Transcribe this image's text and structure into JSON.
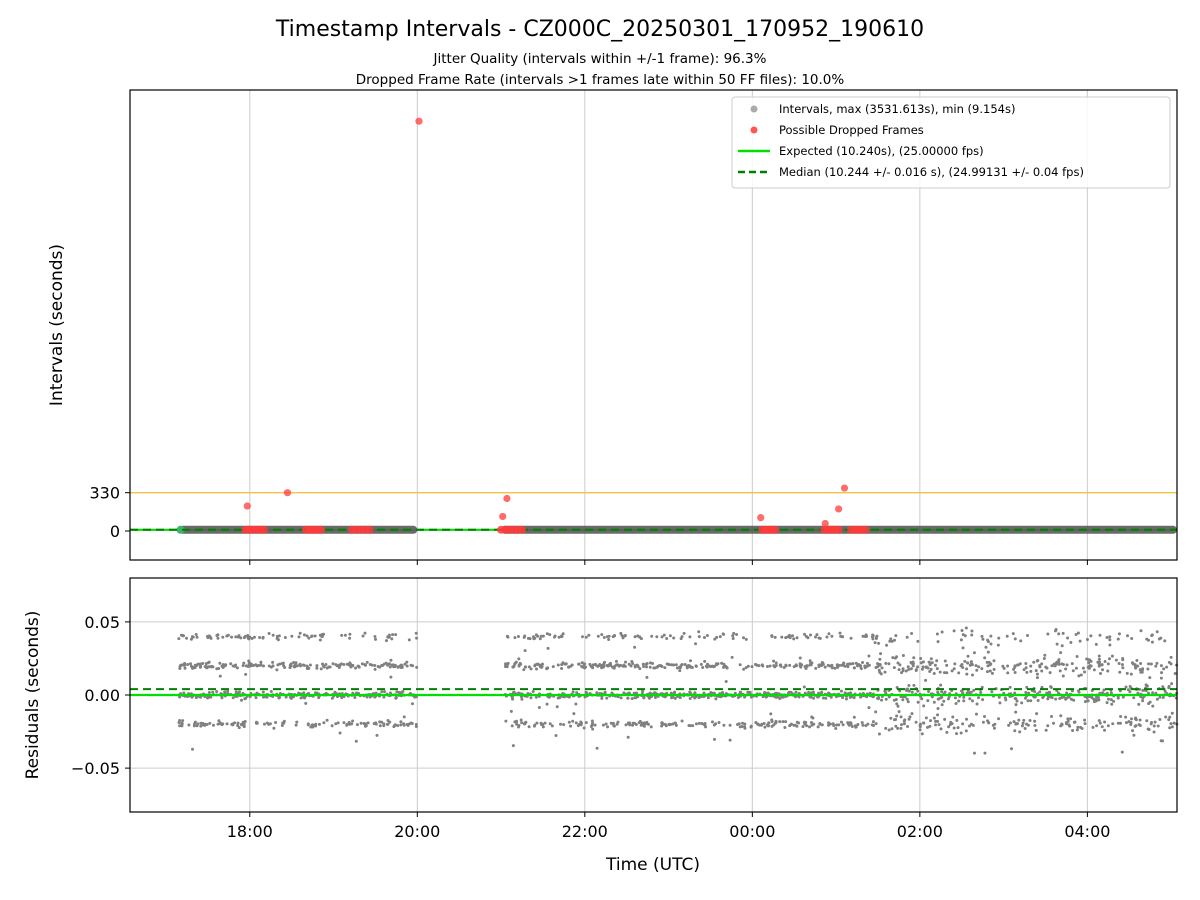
{
  "figure": {
    "title": "Timestamp Intervals - CZ000C_20250301_170952_190610",
    "subtitle_lines": [
      "Jitter Quality (intervals within +/-1 frame): 96.3%",
      "Dropped Frame Rate (intervals >1 frames late within 50 FF files): 10.0%"
    ]
  },
  "colors": {
    "intervals": "#808080",
    "dropped": "#ff3b3b",
    "expected": "#00e000",
    "median": "#008000",
    "threshold": "#f5c242",
    "grid": "#cccccc"
  },
  "chart_data": [
    {
      "type": "scatter",
      "panel": "intervals",
      "xlabel": "",
      "ylabel": "Intervals (seconds)",
      "x_unit": "hours since 00:00 UTC (negative = previous day)",
      "xlim": [
        -7.43,
        5.07
      ],
      "ylim": [
        -250,
        3800
      ],
      "x_ticks": [
        -6,
        -4,
        -2,
        0,
        2,
        4
      ],
      "y_ticks": [
        0,
        330
      ],
      "y_tick_labels": [
        "0",
        "330"
      ],
      "threshold_line": 330,
      "expected_value": 10.24,
      "median_value": 10.244,
      "grid": "vertical",
      "legend_position": "top-right",
      "legend": [
        {
          "label": "Intervals, max (3531.613s), min (9.154s)",
          "kind": "dot",
          "color": "#aaaaaa"
        },
        {
          "label": "Possible Dropped Frames",
          "kind": "dot",
          "color": "#ff5555"
        },
        {
          "label": "Expected (10.240s), (25.00000 fps)",
          "kind": "line",
          "color": "#00e000"
        },
        {
          "label": "Median (10.244 +/- 0.016 s), (24.99131 +/- 0.04 fps)",
          "kind": "dash",
          "color": "#008000"
        }
      ],
      "interval_segments": [
        {
          "start": -6.85,
          "end": -4.0
        },
        {
          "start": -3.0,
          "end": 5.07
        }
      ],
      "dropped_outliers": [
        {
          "x": -6.03,
          "y": 215
        },
        {
          "x": -5.55,
          "y": 330
        },
        {
          "x": -3.98,
          "y": 3531
        },
        {
          "x": -2.98,
          "y": 125
        },
        {
          "x": -2.93,
          "y": 280
        },
        {
          "x": 0.1,
          "y": 115
        },
        {
          "x": 0.87,
          "y": 65
        },
        {
          "x": 1.03,
          "y": 190
        },
        {
          "x": 1.1,
          "y": 370
        }
      ],
      "dropped_clusters": [
        {
          "start": -6.05,
          "end": -5.83
        },
        {
          "start": -5.33,
          "end": -5.15
        },
        {
          "start": -4.78,
          "end": -4.57
        },
        {
          "start": -3.0,
          "end": -2.75
        },
        {
          "start": 0.12,
          "end": 0.27
        },
        {
          "start": 0.86,
          "end": 1.03
        },
        {
          "start": 1.18,
          "end": 1.35
        }
      ]
    },
    {
      "type": "scatter",
      "panel": "residuals",
      "xlabel": "Time (UTC)",
      "ylabel": "Residuals (seconds)",
      "x_unit": "hours since 00:00 UTC (negative = previous day)",
      "xlim": [
        -7.43,
        5.07
      ],
      "ylim": [
        -0.08,
        0.08
      ],
      "x_ticks": [
        -6,
        -4,
        -2,
        0,
        2,
        4
      ],
      "x_tick_labels": [
        "18:00",
        "20:00",
        "22:00",
        "00:00",
        "02:00",
        "04:00"
      ],
      "y_ticks": [
        0.05,
        0.0,
        -0.05
      ],
      "y_tick_labels": [
        "0.05",
        "0.00",
        "−0.05"
      ],
      "expected_residual": 0.0,
      "median_residual": 0.004,
      "grid": "both",
      "residual_segments": [
        {
          "start": -6.85,
          "end": -4.0
        },
        {
          "start": -2.95,
          "end": 5.07
        }
      ],
      "residual_levels": [
        -0.02,
        0.0,
        0.02,
        0.04
      ]
    }
  ]
}
